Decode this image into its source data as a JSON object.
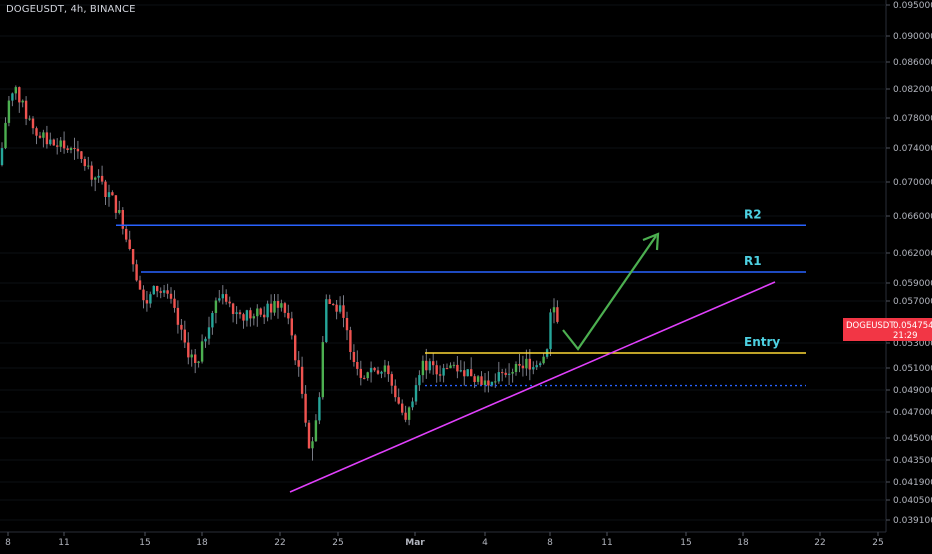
{
  "header": {
    "title": "DOGEUSDT, 4h, BINANCE"
  },
  "price_tag": {
    "symbol": "DOGEUSDT",
    "price": "0.0547541",
    "countdown": "21:29",
    "color": "#f23645"
  },
  "colors": {
    "background": "#000000",
    "up_candle": "#26a69a",
    "up_candle_bright": "#4caf50",
    "down_candle": "#ef5350",
    "resistance": "#2962ff",
    "entry": "#fdd835",
    "trendline": "#e040fb",
    "arrow": "#4caf50",
    "dotted": "#2962ff"
  },
  "chart_data": {
    "type": "candlestick",
    "ylim": [
      0.0385,
      0.0955
    ],
    "y_ticks": [
      "0.0950000",
      "0.0900000",
      "0.0860000",
      "0.0820000",
      "0.0780000",
      "0.0740000",
      "0.0700000",
      "0.0660000",
      "0.0620000",
      "0.0590000",
      "0.0570000",
      "0.0530000",
      "0.0510000",
      "0.0490000",
      "0.0470000",
      "0.0450000",
      "0.0435000",
      "0.0419000",
      "0.0405000",
      "0.0391000"
    ],
    "x_ticks": [
      "8",
      "11",
      "15",
      "18",
      "22",
      "25",
      "Mar",
      "4",
      "8",
      "11",
      "15",
      "18",
      "22",
      "25"
    ],
    "annotations": [
      {
        "label": "R2",
        "type": "horizontal",
        "value": 0.065
      },
      {
        "label": "R1",
        "type": "horizontal",
        "value": 0.0601
      },
      {
        "label": "Entry",
        "type": "horizontal",
        "value": 0.0522
      },
      {
        "label": "",
        "type": "dotted",
        "value": 0.0494
      },
      {
        "label": "",
        "type": "trendline"
      },
      {
        "label": "",
        "type": "arrow"
      }
    ],
    "last_price": 0.0547541
  }
}
